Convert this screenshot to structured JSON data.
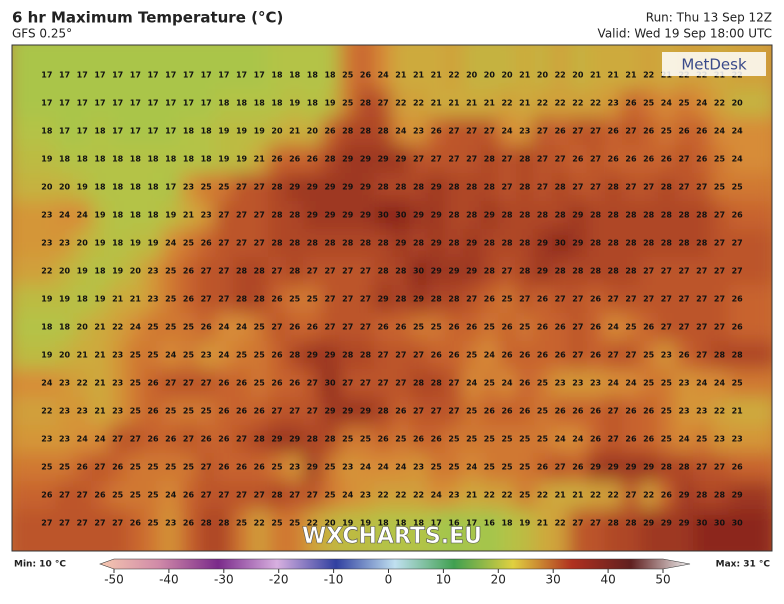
{
  "header": {
    "title": "6 hr Maximum Temperature (°C)",
    "subtitle": "GFS 0.25°",
    "run": "Run: Thu 13 Sep 12Z",
    "valid": "Valid: Wed 19 Sep 18:00 UTC"
  },
  "logo": "MetDesk",
  "watermark": "WXCHARTS.EU",
  "legend": {
    "min": "Min: 10 °C",
    "max": "Max: 31 °C",
    "range": [
      -50,
      50
    ],
    "ticks": [
      -50,
      -40,
      -30,
      -20,
      -10,
      0,
      10,
      20,
      30,
      40,
      50
    ]
  },
  "grid": [
    [
      17,
      17,
      17,
      17,
      17,
      17,
      17,
      17,
      17,
      17,
      17,
      17,
      17,
      18,
      18,
      18,
      18,
      25,
      26,
      24,
      21,
      21,
      21,
      22,
      20,
      20,
      20,
      21,
      20,
      22,
      20,
      21,
      21,
      21,
      22,
      21,
      22,
      22,
      21,
      22
    ],
    [
      17,
      17,
      17,
      17,
      17,
      17,
      17,
      17,
      17,
      17,
      18,
      18,
      18,
      18,
      19,
      18,
      19,
      25,
      28,
      27,
      22,
      22,
      21,
      21,
      21,
      21,
      22,
      21,
      22,
      22,
      22,
      22,
      23,
      26,
      25,
      24,
      25,
      24,
      22,
      20
    ],
    [
      18,
      17,
      17,
      18,
      17,
      17,
      17,
      17,
      18,
      18,
      19,
      19,
      19,
      20,
      21,
      20,
      26,
      28,
      28,
      28,
      24,
      23,
      26,
      27,
      27,
      27,
      24,
      23,
      27,
      26,
      27,
      27,
      26,
      27,
      26,
      25,
      26,
      26,
      24,
      24
    ],
    [
      19,
      18,
      18,
      18,
      18,
      18,
      18,
      18,
      18,
      18,
      19,
      19,
      21,
      26,
      26,
      26,
      28,
      29,
      29,
      29,
      29,
      27,
      27,
      27,
      27,
      28,
      27,
      28,
      27,
      27,
      26,
      27,
      26,
      26,
      26,
      26,
      27,
      26,
      25,
      24
    ],
    [
      20,
      20,
      19,
      18,
      18,
      18,
      18,
      17,
      23,
      25,
      25,
      27,
      27,
      28,
      29,
      29,
      29,
      29,
      29,
      28,
      28,
      28,
      29,
      28,
      28,
      28,
      27,
      28,
      27,
      28,
      27,
      27,
      28,
      27,
      27,
      28,
      27,
      27,
      25,
      25
    ],
    [
      23,
      24,
      24,
      19,
      18,
      18,
      18,
      19,
      21,
      23,
      27,
      27,
      27,
      28,
      28,
      29,
      29,
      29,
      29,
      30,
      30,
      29,
      29,
      28,
      28,
      29,
      28,
      28,
      28,
      28,
      29,
      28,
      28,
      28,
      28,
      28,
      28,
      28,
      27,
      26
    ],
    [
      23,
      23,
      20,
      19,
      18,
      19,
      19,
      24,
      25,
      26,
      27,
      27,
      27,
      28,
      28,
      28,
      28,
      28,
      28,
      28,
      29,
      28,
      29,
      28,
      29,
      28,
      28,
      28,
      29,
      30,
      29,
      28,
      28,
      28,
      28,
      28,
      28,
      28,
      27,
      27
    ],
    [
      22,
      20,
      19,
      18,
      19,
      20,
      23,
      25,
      26,
      27,
      27,
      28,
      28,
      27,
      28,
      27,
      27,
      27,
      27,
      28,
      28,
      30,
      29,
      29,
      29,
      28,
      27,
      28,
      29,
      28,
      28,
      28,
      28,
      28,
      27,
      27,
      27,
      27,
      27,
      27
    ],
    [
      19,
      19,
      18,
      19,
      21,
      21,
      23,
      25,
      26,
      27,
      27,
      28,
      28,
      26,
      25,
      25,
      27,
      27,
      27,
      29,
      28,
      29,
      28,
      28,
      27,
      26,
      25,
      27,
      26,
      27,
      27,
      26,
      27,
      27,
      27,
      27,
      27,
      27,
      27,
      26
    ],
    [
      18,
      18,
      20,
      21,
      22,
      24,
      25,
      25,
      25,
      26,
      24,
      24,
      25,
      27,
      26,
      26,
      27,
      27,
      27,
      26,
      26,
      25,
      25,
      26,
      26,
      25,
      26,
      25,
      26,
      26,
      27,
      26,
      24,
      25,
      26,
      27,
      27,
      27,
      27,
      26
    ],
    [
      19,
      20,
      21,
      21,
      23,
      25,
      25,
      24,
      25,
      23,
      24,
      25,
      25,
      26,
      28,
      29,
      29,
      28,
      28,
      27,
      27,
      27,
      26,
      26,
      25,
      24,
      26,
      26,
      26,
      26,
      27,
      26,
      27,
      27,
      25,
      23,
      26,
      27,
      28,
      28
    ],
    [
      24,
      23,
      22,
      21,
      23,
      25,
      26,
      27,
      27,
      27,
      26,
      26,
      25,
      26,
      26,
      27,
      30,
      27,
      27,
      27,
      27,
      28,
      28,
      27,
      24,
      25,
      24,
      26,
      25,
      23,
      23,
      23,
      24,
      24,
      25,
      25,
      23,
      24,
      24,
      25
    ],
    [
      22,
      23,
      23,
      21,
      23,
      25,
      26,
      25,
      25,
      25,
      26,
      26,
      26,
      27,
      27,
      27,
      29,
      29,
      29,
      28,
      26,
      27,
      27,
      27,
      25,
      26,
      26,
      26,
      25,
      26,
      26,
      26,
      27,
      26,
      26,
      25,
      23,
      23,
      22,
      21
    ],
    [
      23,
      23,
      24,
      24,
      27,
      27,
      26,
      26,
      27,
      26,
      26,
      27,
      28,
      29,
      29,
      28,
      28,
      25,
      25,
      26,
      25,
      26,
      26,
      25,
      25,
      25,
      25,
      25,
      25,
      24,
      24,
      26,
      27,
      26,
      26,
      25,
      24,
      25,
      23,
      23
    ],
    [
      25,
      25,
      26,
      27,
      26,
      25,
      25,
      25,
      25,
      27,
      26,
      26,
      26,
      25,
      23,
      29,
      25,
      23,
      24,
      24,
      24,
      23,
      25,
      25,
      24,
      25,
      25,
      25,
      26,
      27,
      26,
      29,
      29,
      29,
      29,
      28,
      28,
      27,
      27,
      26
    ],
    [
      26,
      27,
      27,
      26,
      25,
      25,
      25,
      24,
      26,
      27,
      27,
      27,
      27,
      28,
      27,
      27,
      25,
      24,
      23,
      22,
      22,
      22,
      24,
      23,
      21,
      22,
      22,
      25,
      22,
      21,
      21,
      22,
      22,
      27,
      22,
      26,
      29,
      28,
      28,
      29
    ],
    [
      27,
      27,
      27,
      27,
      27,
      26,
      25,
      23,
      26,
      28,
      28,
      25,
      22,
      25,
      25,
      22,
      20,
      19,
      19,
      18,
      18,
      18,
      17,
      16,
      17,
      16,
      18,
      19,
      21,
      22,
      27,
      27,
      28,
      28,
      29,
      29,
      29,
      30,
      30,
      30
    ]
  ]
}
